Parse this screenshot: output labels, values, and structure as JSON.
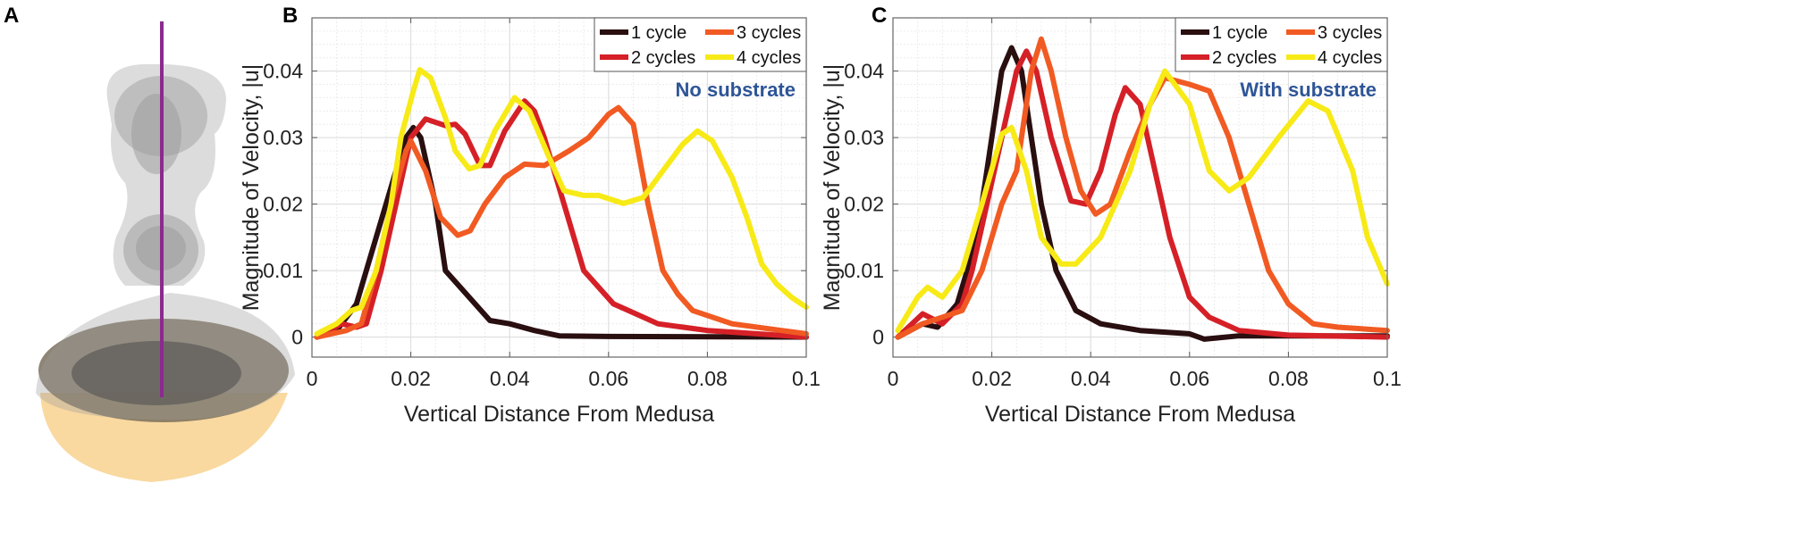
{
  "panels": {
    "a": "A",
    "b": "B",
    "c": "C"
  },
  "colors": {
    "1 cycle": "#2a0f10",
    "2 cycles": "#d52027",
    "3 cycles": "#f15a22",
    "4 cycles": "#f7ea16",
    "annotation": "#2e5597",
    "probe_line": "#8b2a8e",
    "substrate": "#f9d9a0"
  },
  "chart_data": [
    {
      "type": "line",
      "panel": "B",
      "xlabel": "Vertical Distance From Medusa",
      "ylabel": "Magnitude of Velocity, |u|",
      "annotation": "No substrate",
      "xlim": [
        0,
        0.1
      ],
      "ylim": [
        -0.003,
        0.048
      ],
      "xticks": [
        "0",
        "0.02",
        "0.04",
        "0.06",
        "0.08",
        "0.1"
      ],
      "yticks": [
        "0",
        "0.01",
        "0.02",
        "0.03",
        "0.04"
      ],
      "grid": "major and minor",
      "legend": "top-right",
      "series": [
        {
          "name": "1 cycle",
          "points": [
            [
              0.001,
              0
            ],
            [
              0.005,
              0.001
            ],
            [
              0.009,
              0.005
            ],
            [
              0.011,
              0.01
            ],
            [
              0.015,
              0.02
            ],
            [
              0.019,
              0.03
            ],
            [
              0.0205,
              0.0315
            ],
            [
              0.022,
              0.03
            ],
            [
              0.025,
              0.02
            ],
            [
              0.027,
              0.01
            ],
            [
              0.033,
              0.005
            ],
            [
              0.036,
              0.0025
            ],
            [
              0.04,
              0.002
            ],
            [
              0.045,
              0.001
            ],
            [
              0.05,
              0.0002
            ],
            [
              0.06,
              0.0001
            ],
            [
              0.1,
              0
            ]
          ]
        },
        {
          "name": "2 cycles",
          "points": [
            [
              0.001,
              0
            ],
            [
              0.006,
              0.002
            ],
            [
              0.009,
              0.0015
            ],
            [
              0.011,
              0.002
            ],
            [
              0.014,
              0.01
            ],
            [
              0.017,
              0.02
            ],
            [
              0.02,
              0.03
            ],
            [
              0.023,
              0.0328
            ],
            [
              0.027,
              0.0318
            ],
            [
              0.029,
              0.032
            ],
            [
              0.031,
              0.0305
            ],
            [
              0.034,
              0.0258
            ],
            [
              0.036,
              0.0258
            ],
            [
              0.039,
              0.031
            ],
            [
              0.043,
              0.0355
            ],
            [
              0.045,
              0.034
            ],
            [
              0.047,
              0.03
            ],
            [
              0.051,
              0.02
            ],
            [
              0.055,
              0.01
            ],
            [
              0.061,
              0.005
            ],
            [
              0.064,
              0.004
            ],
            [
              0.07,
              0.002
            ],
            [
              0.08,
              0.001
            ],
            [
              0.09,
              0.0005
            ],
            [
              0.1,
              0
            ]
          ]
        },
        {
          "name": "3 cycles",
          "points": [
            [
              0.001,
              0
            ],
            [
              0.007,
              0.001
            ],
            [
              0.01,
              0.002
            ],
            [
              0.013,
              0.01
            ],
            [
              0.016,
              0.02
            ],
            [
              0.019,
              0.028
            ],
            [
              0.02,
              0.0295
            ],
            [
              0.023,
              0.025
            ],
            [
              0.026,
              0.018
            ],
            [
              0.0295,
              0.0153
            ],
            [
              0.032,
              0.016
            ],
            [
              0.035,
              0.02
            ],
            [
              0.039,
              0.024
            ],
            [
              0.043,
              0.026
            ],
            [
              0.047,
              0.0258
            ],
            [
              0.052,
              0.028
            ],
            [
              0.056,
              0.03
            ],
            [
              0.06,
              0.0335
            ],
            [
              0.062,
              0.0345
            ],
            [
              0.065,
              0.032
            ],
            [
              0.068,
              0.02
            ],
            [
              0.071,
              0.01
            ],
            [
              0.074,
              0.0065
            ],
            [
              0.077,
              0.004
            ],
            [
              0.085,
              0.002
            ],
            [
              0.095,
              0.001
            ],
            [
              0.1,
              0.0005
            ]
          ]
        },
        {
          "name": "4 cycles",
          "points": [
            [
              0.001,
              0.0005
            ],
            [
              0.005,
              0.002
            ],
            [
              0.008,
              0.004
            ],
            [
              0.01,
              0.0045
            ],
            [
              0.013,
              0.01
            ],
            [
              0.016,
              0.02
            ],
            [
              0.018,
              0.03
            ],
            [
              0.0205,
              0.037
            ],
            [
              0.0218,
              0.0402
            ],
            [
              0.024,
              0.039
            ],
            [
              0.027,
              0.033
            ],
            [
              0.029,
              0.028
            ],
            [
              0.0318,
              0.0253
            ],
            [
              0.034,
              0.0258
            ],
            [
              0.037,
              0.031
            ],
            [
              0.041,
              0.036
            ],
            [
              0.044,
              0.034
            ],
            [
              0.048,
              0.027
            ],
            [
              0.051,
              0.022
            ],
            [
              0.055,
              0.0213
            ],
            [
              0.058,
              0.0213
            ],
            [
              0.063,
              0.0201
            ],
            [
              0.067,
              0.021
            ],
            [
              0.071,
              0.025
            ],
            [
              0.075,
              0.029
            ],
            [
              0.078,
              0.031
            ],
            [
              0.081,
              0.0295
            ],
            [
              0.085,
              0.024
            ],
            [
              0.088,
              0.018
            ],
            [
              0.091,
              0.011
            ],
            [
              0.094,
              0.008
            ],
            [
              0.097,
              0.006
            ],
            [
              0.1,
              0.0045
            ]
          ]
        }
      ]
    },
    {
      "type": "line",
      "panel": "C",
      "xlabel": "Vertical Distance From Medusa",
      "ylabel": "Magnitude of Velocity, |u|",
      "annotation": "With substrate",
      "xlim": [
        0,
        0.1
      ],
      "ylim": [
        -0.003,
        0.048
      ],
      "xticks": [
        "0",
        "0.02",
        "0.04",
        "0.06",
        "0.08",
        "0.1"
      ],
      "yticks": [
        "0",
        "0.01",
        "0.02",
        "0.03",
        "0.04"
      ],
      "grid": "major and minor",
      "legend": "top-right",
      "series": [
        {
          "name": "1 cycle",
          "points": [
            [
              0.001,
              0
            ],
            [
              0.006,
              0.002
            ],
            [
              0.009,
              0.0015
            ],
            [
              0.013,
              0.005
            ],
            [
              0.015,
              0.01
            ],
            [
              0.018,
              0.02
            ],
            [
              0.02,
              0.03
            ],
            [
              0.022,
              0.04
            ],
            [
              0.024,
              0.0435
            ],
            [
              0.026,
              0.04
            ],
            [
              0.028,
              0.03
            ],
            [
              0.03,
              0.02
            ],
            [
              0.033,
              0.01
            ],
            [
              0.037,
              0.004
            ],
            [
              0.042,
              0.002
            ],
            [
              0.05,
              0.001
            ],
            [
              0.06,
              0.0005
            ],
            [
              0.063,
              -0.0003
            ],
            [
              0.07,
              0.0002
            ],
            [
              0.1,
              0.0002
            ]
          ]
        },
        {
          "name": "2 cycles",
          "points": [
            [
              0.001,
              0
            ],
            [
              0.006,
              0.0035
            ],
            [
              0.01,
              0.002
            ],
            [
              0.014,
              0.005
            ],
            [
              0.016,
              0.01
            ],
            [
              0.019,
              0.02
            ],
            [
              0.022,
              0.03
            ],
            [
              0.025,
              0.04
            ],
            [
              0.027,
              0.043
            ],
            [
              0.029,
              0.04
            ],
            [
              0.032,
              0.03
            ],
            [
              0.036,
              0.0205
            ],
            [
              0.039,
              0.02
            ],
            [
              0.042,
              0.025
            ],
            [
              0.045,
              0.0335
            ],
            [
              0.047,
              0.0375
            ],
            [
              0.05,
              0.035
            ],
            [
              0.053,
              0.025
            ],
            [
              0.056,
              0.015
            ],
            [
              0.06,
              0.006
            ],
            [
              0.064,
              0.003
            ],
            [
              0.07,
              0.001
            ],
            [
              0.08,
              0.0003
            ],
            [
              0.1,
              0
            ]
          ]
        },
        {
          "name": "3 cycles",
          "points": [
            [
              0.001,
              0
            ],
            [
              0.006,
              0.002
            ],
            [
              0.01,
              0.003
            ],
            [
              0.014,
              0.004
            ],
            [
              0.018,
              0.01
            ],
            [
              0.022,
              0.02
            ],
            [
              0.025,
              0.025
            ],
            [
              0.026,
              0.03
            ],
            [
              0.028,
              0.04
            ],
            [
              0.03,
              0.0448
            ],
            [
              0.032,
              0.04
            ],
            [
              0.035,
              0.03
            ],
            [
              0.038,
              0.022
            ],
            [
              0.041,
              0.0185
            ],
            [
              0.044,
              0.02
            ],
            [
              0.048,
              0.028
            ],
            [
              0.052,
              0.035
            ],
            [
              0.055,
              0.039
            ],
            [
              0.06,
              0.038
            ],
            [
              0.064,
              0.037
            ],
            [
              0.068,
              0.03
            ],
            [
              0.072,
              0.02
            ],
            [
              0.076,
              0.01
            ],
            [
              0.08,
              0.005
            ],
            [
              0.085,
              0.002
            ],
            [
              0.09,
              0.0015
            ],
            [
              0.1,
              0.001
            ]
          ]
        },
        {
          "name": "4 cycles",
          "points": [
            [
              0.001,
              0.001
            ],
            [
              0.005,
              0.006
            ],
            [
              0.007,
              0.0075
            ],
            [
              0.01,
              0.006
            ],
            [
              0.014,
              0.01
            ],
            [
              0.018,
              0.02
            ],
            [
              0.022,
              0.0305
            ],
            [
              0.024,
              0.0315
            ],
            [
              0.027,
              0.025
            ],
            [
              0.03,
              0.015
            ],
            [
              0.034,
              0.011
            ],
            [
              0.037,
              0.011
            ],
            [
              0.042,
              0.015
            ],
            [
              0.048,
              0.025
            ],
            [
              0.052,
              0.035
            ],
            [
              0.055,
              0.04
            ],
            [
              0.06,
              0.035
            ],
            [
              0.064,
              0.025
            ],
            [
              0.068,
              0.022
            ],
            [
              0.072,
              0.024
            ],
            [
              0.078,
              0.03
            ],
            [
              0.084,
              0.0355
            ],
            [
              0.088,
              0.034
            ],
            [
              0.093,
              0.025
            ],
            [
              0.096,
              0.015
            ],
            [
              0.1,
              0.008
            ]
          ]
        }
      ]
    }
  ]
}
